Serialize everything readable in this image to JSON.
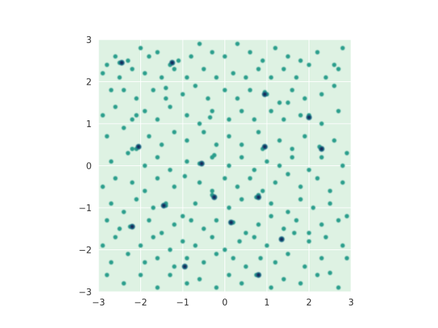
{
  "chart_data": {
    "type": "heatmap",
    "title": "",
    "xlabel": "",
    "ylabel": "",
    "xlim": [
      -3,
      3
    ],
    "ylim": [
      -3,
      3
    ],
    "x_ticks": [
      -3,
      -2,
      -1,
      0,
      1,
      2,
      3
    ],
    "y_ticks": [
      -3,
      -2,
      -1,
      0,
      1,
      2,
      3
    ],
    "x_tick_labels": [
      "−3",
      "−2",
      "−1",
      "0",
      "1",
      "2",
      "3"
    ],
    "y_tick_labels": [
      "−3",
      "−2",
      "−1",
      "0",
      "1",
      "2",
      "3"
    ],
    "grid": true,
    "colormap": "light green to dark navy",
    "colors": {
      "background": "#def2e3",
      "grid": "#ffffff",
      "low_density": "#2a9e8c",
      "mid_density": "#1d6b86",
      "high_density": "#14265a"
    },
    "points": [
      [
        -2.8,
        2.4
      ],
      [
        -2.6,
        2.6
      ],
      [
        -2.3,
        2.5
      ],
      [
        -2.0,
        2.8
      ],
      [
        -1.8,
        2.6
      ],
      [
        -1.6,
        2.7
      ],
      [
        -1.3,
        2.4
      ],
      [
        -1.1,
        2.5
      ],
      [
        -0.8,
        2.6
      ],
      [
        -0.6,
        2.9
      ],
      [
        -0.3,
        2.7
      ],
      [
        0.0,
        2.6
      ],
      [
        0.3,
        2.9
      ],
      [
        0.6,
        2.7
      ],
      [
        0.9,
        2.5
      ],
      [
        1.2,
        2.8
      ],
      [
        1.5,
        2.6
      ],
      [
        1.8,
        2.5
      ],
      [
        2.2,
        2.7
      ],
      [
        2.6,
        2.4
      ],
      [
        2.8,
        2.8
      ],
      [
        -2.9,
        2.2
      ],
      [
        -2.5,
        2.1
      ],
      [
        -2.2,
        2.3
      ],
      [
        -1.9,
        2.2
      ],
      [
        -1.5,
        2.1
      ],
      [
        -1.2,
        2.3
      ],
      [
        -0.9,
        2.1
      ],
      [
        -0.5,
        2.3
      ],
      [
        -0.2,
        2.1
      ],
      [
        0.2,
        2.2
      ],
      [
        0.5,
        2.1
      ],
      [
        0.8,
        2.3
      ],
      [
        1.1,
        2.1
      ],
      [
        1.4,
        2.3
      ],
      [
        1.7,
        2.1
      ],
      [
        2.0,
        2.4
      ],
      [
        2.4,
        2.1
      ],
      [
        2.7,
        2.3
      ],
      [
        -2.7,
        1.8
      ],
      [
        -2.4,
        1.8
      ],
      [
        -2.1,
        1.6
      ],
      [
        -1.7,
        1.8
      ],
      [
        -1.4,
        1.6
      ],
      [
        -1.0,
        1.7
      ],
      [
        -0.7,
        1.9
      ],
      [
        -0.4,
        1.6
      ],
      [
        0.0,
        1.8
      ],
      [
        0.3,
        1.6
      ],
      [
        0.6,
        1.8
      ],
      [
        1.0,
        1.7
      ],
      [
        1.3,
        1.5
      ],
      [
        1.6,
        1.8
      ],
      [
        1.9,
        1.6
      ],
      [
        2.3,
        1.7
      ],
      [
        2.6,
        1.9
      ],
      [
        -2.9,
        1.2
      ],
      [
        -2.6,
        1.4
      ],
      [
        -2.2,
        1.1
      ],
      [
        -1.9,
        1.3
      ],
      [
        -1.6,
        1.1
      ],
      [
        -1.3,
        1.4
      ],
      [
        -0.9,
        1.2
      ],
      [
        -0.6,
        1.0
      ],
      [
        -0.3,
        1.3
      ],
      [
        0.1,
        1.1
      ],
      [
        0.4,
        1.3
      ],
      [
        0.7,
        1.1
      ],
      [
        1.1,
        1.3
      ],
      [
        1.4,
        1.1
      ],
      [
        1.8,
        1.2
      ],
      [
        2.0,
        1.2
      ],
      [
        2.3,
        1.0
      ],
      [
        2.7,
        1.3
      ],
      [
        -2.8,
        0.7
      ],
      [
        -2.4,
        0.9
      ],
      [
        -2.1,
        0.4
      ],
      [
        -1.8,
        0.7
      ],
      [
        -1.5,
        0.5
      ],
      [
        -1.2,
        0.8
      ],
      [
        -0.9,
        0.6
      ],
      [
        -0.5,
        0.8
      ],
      [
        -0.2,
        0.5
      ],
      [
        0.1,
        0.7
      ],
      [
        0.4,
        0.5
      ],
      [
        0.8,
        0.8
      ],
      [
        0.95,
        0.45
      ],
      [
        1.3,
        0.6
      ],
      [
        1.6,
        0.4
      ],
      [
        1.9,
        0.7
      ],
      [
        2.3,
        0.4
      ],
      [
        2.6,
        0.6
      ],
      [
        2.9,
        0.3
      ],
      [
        -2.7,
        0.1
      ],
      [
        -2.3,
        0.3
      ],
      [
        -1.9,
        0.0
      ],
      [
        -1.6,
        0.2
      ],
      [
        -1.3,
        -0.1
      ],
      [
        -0.9,
        0.1
      ],
      [
        -0.6,
        0.05
      ],
      [
        -0.3,
        0.2
      ],
      [
        0.1,
        0.0
      ],
      [
        0.4,
        0.2
      ],
      [
        0.7,
        -0.1
      ],
      [
        1.0,
        0.1
      ],
      [
        1.3,
        0.0
      ],
      [
        1.6,
        0.2
      ],
      [
        2.0,
        -0.1
      ],
      [
        2.3,
        0.2
      ],
      [
        2.8,
        0.0
      ],
      [
        -2.9,
        -0.5
      ],
      [
        -2.6,
        -0.3
      ],
      [
        -2.2,
        -0.4
      ],
      [
        -1.9,
        -0.6
      ],
      [
        -1.6,
        -0.3
      ],
      [
        -1.2,
        -0.5
      ],
      [
        -0.95,
        -0.25
      ],
      [
        -0.6,
        -0.4
      ],
      [
        -0.3,
        -0.6
      ],
      [
        0.0,
        -0.3
      ],
      [
        0.3,
        -0.5
      ],
      [
        0.6,
        -0.3
      ],
      [
        0.9,
        -0.6
      ],
      [
        1.2,
        -0.4
      ],
      [
        1.5,
        -0.2
      ],
      [
        1.8,
        -0.5
      ],
      [
        2.2,
        -0.3
      ],
      [
        2.5,
        -0.6
      ],
      [
        2.8,
        -0.4
      ],
      [
        -2.7,
        -0.9
      ],
      [
        -2.4,
        -1.1
      ],
      [
        -2.1,
        -0.8
      ],
      [
        -1.7,
        -1.0
      ],
      [
        -1.4,
        -0.95
      ],
      [
        -1.0,
        -1.2
      ],
      [
        -0.7,
        -0.9
      ],
      [
        -0.3,
        -0.7
      ],
      [
        0.1,
        -1.0
      ],
      [
        0.4,
        -0.8
      ],
      [
        0.8,
        -0.7
      ],
      [
        1.1,
        -0.9
      ],
      [
        1.5,
        -1.1
      ],
      [
        1.8,
        -0.8
      ],
      [
        2.1,
        -1.0
      ],
      [
        2.5,
        -0.9
      ],
      [
        2.9,
        -1.2
      ],
      [
        -2.8,
        -1.3
      ],
      [
        -2.5,
        -1.5
      ],
      [
        -2.2,
        -1.45
      ],
      [
        -1.8,
        -1.3
      ],
      [
        -1.5,
        -1.6
      ],
      [
        -1.2,
        -1.4
      ],
      [
        -0.8,
        -1.3
      ],
      [
        -0.5,
        -1.5
      ],
      [
        -0.2,
        -1.3
      ],
      [
        0.2,
        -1.35
      ],
      [
        0.5,
        -1.6
      ],
      [
        0.8,
        -1.4
      ],
      [
        1.1,
        -1.2
      ],
      [
        1.4,
        -1.5
      ],
      [
        1.7,
        -1.3
      ],
      [
        2.0,
        -1.6
      ],
      [
        2.3,
        -1.4
      ],
      [
        2.7,
        -1.3
      ],
      [
        -2.9,
        -1.9
      ],
      [
        -2.6,
        -1.7
      ],
      [
        -2.0,
        -1.9
      ],
      [
        -1.7,
        -1.7
      ],
      [
        -1.3,
        -2.0
      ],
      [
        -1.0,
        -1.8
      ],
      [
        -0.7,
        -1.9
      ],
      [
        -0.3,
        -1.7
      ],
      [
        0.0,
        -2.0
      ],
      [
        0.35,
        -1.8
      ],
      [
        0.7,
        -1.7
      ],
      [
        1.0,
        -1.9
      ],
      [
        1.35,
        -1.75
      ],
      [
        1.65,
        -1.6
      ],
      [
        2.0,
        -1.8
      ],
      [
        2.4,
        -1.7
      ],
      [
        2.8,
        -1.9
      ],
      [
        -2.7,
        -2.3
      ],
      [
        -2.3,
        -2.1
      ],
      [
        -1.9,
        -2.3
      ],
      [
        -1.6,
        -2.2
      ],
      [
        -1.2,
        -2.4
      ],
      [
        -0.9,
        -2.2
      ],
      [
        -0.5,
        -2.3
      ],
      [
        -0.2,
        -2.1
      ],
      [
        0.2,
        -2.2
      ],
      [
        0.5,
        -2.4
      ],
      [
        0.85,
        -2.2
      ],
      [
        1.2,
        -2.3
      ],
      [
        1.5,
        -2.1
      ],
      [
        1.9,
        -2.4
      ],
      [
        2.3,
        -2.2
      ],
      [
        2.9,
        -2.2
      ],
      [
        -2.8,
        -2.6
      ],
      [
        -2.4,
        -2.8
      ],
      [
        -2.0,
        -2.6
      ],
      [
        -1.6,
        -2.9
      ],
      [
        -1.3,
        -2.6
      ],
      [
        -0.9,
        -2.8
      ],
      [
        -0.6,
        -2.7
      ],
      [
        -0.2,
        -2.9
      ],
      [
        0.1,
        -2.6
      ],
      [
        0.4,
        -2.8
      ],
      [
        0.75,
        -2.6
      ],
      [
        1.1,
        -2.9
      ],
      [
        1.4,
        -2.7
      ],
      [
        1.8,
        -2.8
      ],
      [
        2.2,
        -2.6
      ],
      [
        2.5,
        -2.55
      ],
      [
        2.7,
        -2.9
      ],
      [
        -2.5,
        2.45
      ],
      [
        -2.1,
        1.2
      ],
      [
        -1.4,
        1.85
      ],
      [
        -0.35,
        1.15
      ],
      [
        0.95,
        1.75
      ],
      [
        1.5,
        1.5
      ],
      [
        -2.2,
        0.4
      ],
      [
        -0.25,
        0.25
      ],
      [
        0.9,
        0.4
      ],
      [
        2.25,
        0.45
      ],
      [
        -1.4,
        -0.9
      ],
      [
        -0.25,
        -0.75
      ],
      [
        0.75,
        -0.75
      ],
      [
        1.35,
        -1.75
      ],
      [
        -2.25,
        -1.45
      ],
      [
        -0.95,
        -2.4
      ]
    ],
    "hotspots": [
      [
        -2.45,
        2.45
      ],
      [
        -1.25,
        2.45
      ],
      [
        0.95,
        1.7
      ],
      [
        2.0,
        1.15
      ],
      [
        -2.05,
        0.45
      ],
      [
        0.95,
        0.45
      ],
      [
        2.3,
        0.4
      ],
      [
        -0.55,
        0.05
      ],
      [
        -1.45,
        -0.95
      ],
      [
        -0.25,
        -0.75
      ],
      [
        0.8,
        -0.75
      ],
      [
        -2.2,
        -1.45
      ],
      [
        0.15,
        -1.35
      ],
      [
        1.35,
        -1.75
      ],
      [
        -0.95,
        -2.4
      ],
      [
        0.8,
        -2.6
      ]
    ]
  }
}
